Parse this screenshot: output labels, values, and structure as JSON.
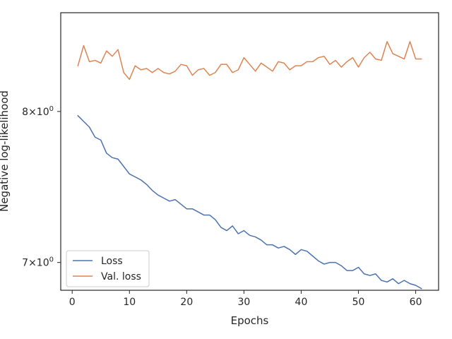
{
  "chart_data": {
    "type": "line",
    "xlabel": "Epochs",
    "ylabel": "Negative log-likelihood",
    "y_scale": "log",
    "xlim": [
      -2,
      64
    ],
    "ylim": [
      6.83,
      8.73
    ],
    "x_ticks": [
      0,
      10,
      20,
      30,
      40,
      50,
      60
    ],
    "x_tick_labels": [
      "0",
      "10",
      "20",
      "30",
      "40",
      "50",
      "60"
    ],
    "y_ticks": [
      {
        "value": 8,
        "base": "8",
        "exp": "0"
      },
      {
        "value": 7,
        "base": "7",
        "exp": "0"
      }
    ],
    "grid": false,
    "legend_position": "lower-left",
    "x": [
      1,
      2,
      3,
      4,
      5,
      6,
      7,
      8,
      9,
      10,
      11,
      12,
      13,
      14,
      15,
      16,
      17,
      18,
      19,
      20,
      21,
      22,
      23,
      24,
      25,
      26,
      27,
      28,
      29,
      30,
      31,
      32,
      33,
      34,
      35,
      36,
      37,
      38,
      39,
      40,
      41,
      42,
      43,
      44,
      45,
      46,
      47,
      48,
      49,
      50,
      51,
      52,
      53,
      54,
      55,
      56,
      57,
      58,
      59,
      60,
      61
    ],
    "series": [
      {
        "name": "Loss",
        "color": "#4c72b0",
        "values": [
          7.97,
          7.93,
          7.89,
          7.82,
          7.8,
          7.71,
          7.68,
          7.67,
          7.62,
          7.57,
          7.55,
          7.53,
          7.5,
          7.46,
          7.43,
          7.41,
          7.39,
          7.4,
          7.37,
          7.34,
          7.34,
          7.32,
          7.3,
          7.3,
          7.27,
          7.22,
          7.2,
          7.23,
          7.18,
          7.2,
          7.17,
          7.16,
          7.14,
          7.11,
          7.11,
          7.09,
          7.1,
          7.08,
          7.05,
          7.08,
          7.07,
          7.04,
          7.01,
          6.99,
          7.0,
          7.0,
          6.98,
          6.95,
          6.95,
          6.97,
          6.93,
          6.92,
          6.93,
          6.89,
          6.88,
          6.9,
          6.87,
          6.89,
          6.87,
          6.86,
          6.84
        ]
      },
      {
        "name": "Val. loss",
        "color": "#dd8452",
        "values": [
          8.33,
          8.48,
          8.36,
          8.37,
          8.35,
          8.44,
          8.4,
          8.45,
          8.28,
          8.23,
          8.33,
          8.3,
          8.31,
          8.28,
          8.31,
          8.28,
          8.27,
          8.29,
          8.34,
          8.33,
          8.26,
          8.3,
          8.31,
          8.26,
          8.28,
          8.34,
          8.34,
          8.28,
          8.3,
          8.39,
          8.34,
          8.29,
          8.35,
          8.32,
          8.29,
          8.36,
          8.35,
          8.3,
          8.33,
          8.33,
          8.36,
          8.36,
          8.39,
          8.4,
          8.34,
          8.37,
          8.32,
          8.36,
          8.39,
          8.32,
          8.39,
          8.43,
          8.38,
          8.37,
          8.51,
          8.42,
          8.4,
          8.38,
          8.51,
          8.38,
          8.38
        ]
      }
    ]
  }
}
